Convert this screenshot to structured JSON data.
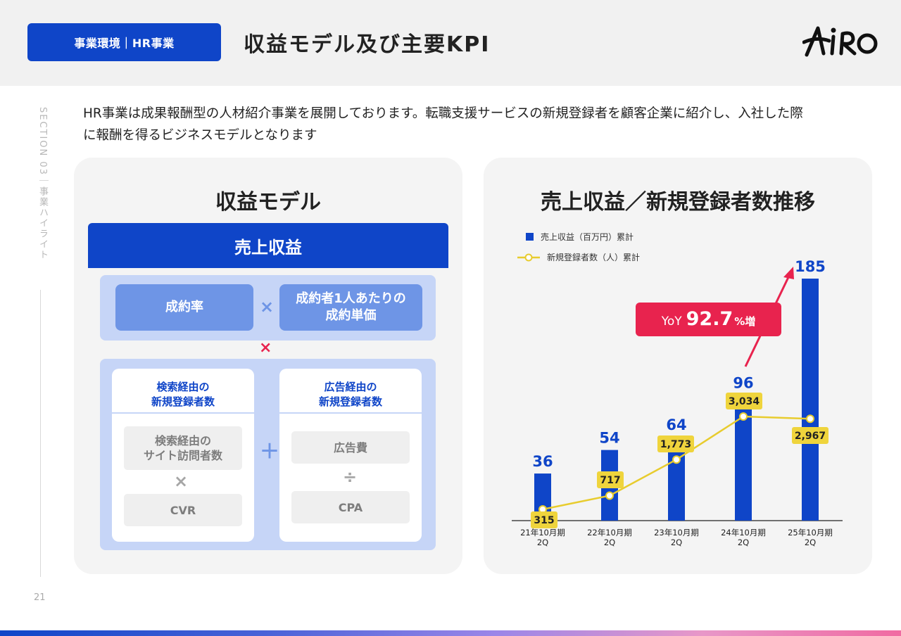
{
  "header": {
    "badge": "事業環境｜HR事業",
    "title": "収益モデル及び主要KPI",
    "logo_text": "AIRO"
  },
  "side": {
    "section_label": "SECTION 03｜事業ハイライト",
    "page_number": "21"
  },
  "intro": {
    "line1": "HR事業は成果報酬型の人材紹介事業を展開しております。転職支援サービスの新規登録者を顧客企業に紹介し、入社した際",
    "line2": "に報酬を得るビジネスモデルとなります"
  },
  "model": {
    "title": "収益モデル",
    "revenue": "売上収益",
    "rate": "成約率",
    "unit_price_1": "成約者1人あたりの",
    "unit_price_2": "成約単価",
    "op_times": "×",
    "op_plus": "＋",
    "op_div": "÷",
    "search_head_1": "検索経由の",
    "search_head_2": "新規登録者数",
    "search_visits_1": "検索経由の",
    "search_visits_2": "サイト訪問者数",
    "cvr": "CVR",
    "ad_head_1": "広告経由の",
    "ad_head_2": "新規登録者数",
    "ad_cost": "広告費",
    "cpa": "CPA"
  },
  "trend": {
    "title": "売上収益／新規登録者数推移",
    "yoy_prefix": "YoY",
    "yoy_value": "92.7",
    "yoy_suffix": "%増"
  },
  "chart_data": {
    "type": "bar",
    "title": "売上収益／新規登録者数推移",
    "categories": [
      "21年10月期\n2Q",
      "22年10月期\n2Q",
      "23年10月期\n2Q",
      "24年10月期\n2Q",
      "25年10月期\n2Q"
    ],
    "series": [
      {
        "name": "売上収益（百万円）累計",
        "type": "bar",
        "color": "#0f45c8",
        "values": [
          36,
          54,
          64,
          96,
          185
        ],
        "labels": [
          "36",
          "54",
          "64",
          "96",
          "185"
        ]
      },
      {
        "name": "新規登録者数（人）累計",
        "type": "line",
        "color": "#e8cc2e",
        "values": [
          315,
          717,
          1773,
          3034,
          2967
        ],
        "labels": [
          "315",
          "717",
          "1,773",
          "3,034",
          "2,967"
        ]
      }
    ],
    "annotation": "YoY 92.7%増",
    "colors": {
      "bar": "#0f45c8",
      "line": "#e8cc2e",
      "accent": "#e8234e"
    }
  }
}
